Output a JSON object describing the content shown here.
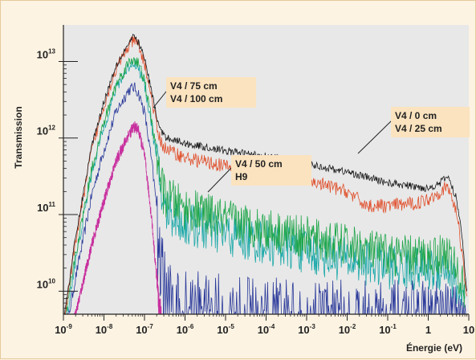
{
  "chart_data": {
    "type": "line",
    "ylabel": "Transmission",
    "xlabel": "Énergie (eV)",
    "x_scale": "log",
    "y_scale": "log",
    "xlim": [
      1e-09,
      10
    ],
    "ylim": [
      5000000000.0,
      30000000000000.0
    ],
    "x_ticks": [
      {
        "value": 1e-09,
        "base": "10",
        "exp": "-9"
      },
      {
        "value": 1e-08,
        "base": "10",
        "exp": "-8"
      },
      {
        "value": 1e-07,
        "base": "10",
        "exp": "-7"
      },
      {
        "value": 1e-06,
        "base": "10",
        "exp": "-6"
      },
      {
        "value": 1e-05,
        "base": "10",
        "exp": "-5"
      },
      {
        "value": 0.0001,
        "base": "10",
        "exp": "-4"
      },
      {
        "value": 0.001,
        "base": "10",
        "exp": "-3"
      },
      {
        "value": 0.01,
        "base": "10",
        "exp": "-2"
      },
      {
        "value": 0.1,
        "base": "10",
        "exp": "-1"
      },
      {
        "value": 1,
        "base": "1",
        "exp": ""
      },
      {
        "value": 10,
        "base": "10",
        "exp": ""
      }
    ],
    "y_ticks": [
      {
        "value": 10000000000.0,
        "base": "10",
        "exp": "10"
      },
      {
        "value": 100000000000.0,
        "base": "10",
        "exp": "11"
      },
      {
        "value": 1000000000000.0,
        "base": "10",
        "exp": "12"
      },
      {
        "value": 10000000000000.0,
        "base": "10",
        "exp": "13"
      }
    ],
    "grid": false,
    "series": [
      {
        "name": "V4 / 0 cm",
        "color": "#1a1a1a",
        "noise": 0.05,
        "points": [
          [
            1e-09,
            4000000000.0
          ],
          [
            2e-09,
            50000000000.0
          ],
          [
            5e-09,
            800000000000.0
          ],
          [
            1e-08,
            3000000000000.0
          ],
          [
            2e-08,
            9000000000000.0
          ],
          [
            4e-08,
            17000000000000.0
          ],
          [
            5.5e-08,
            21000000000000.0
          ],
          [
            7e-08,
            18000000000000.0
          ],
          [
            1e-07,
            11000000000000.0
          ],
          [
            1.5e-07,
            4000000000000.0
          ],
          [
            2.2e-07,
            1500000000000.0
          ],
          [
            3e-07,
            1050000000000.0
          ],
          [
            1e-06,
            850000000000.0
          ],
          [
            1e-05,
            680000000000.0
          ],
          [
            0.0001,
            580000000000.0
          ],
          [
            0.001,
            460000000000.0
          ],
          [
            0.01,
            360000000000.0
          ],
          [
            0.1,
            260000000000.0
          ],
          [
            0.5,
            230000000000.0
          ],
          [
            1,
            220000000000.0
          ],
          [
            2,
            260000000000.0
          ],
          [
            3,
            320000000000.0
          ],
          [
            5,
            160000000000.0
          ],
          [
            7,
            50000000000.0
          ],
          [
            9,
            9000000000.0
          ]
        ]
      },
      {
        "name": "V4 / 25 cm",
        "color": "#e0502c",
        "noise": 0.09,
        "points": [
          [
            1e-09,
            3500000000.0
          ],
          [
            2e-09,
            45000000000.0
          ],
          [
            5e-09,
            700000000000.0
          ],
          [
            1e-08,
            2700000000000.0
          ],
          [
            2e-08,
            8000000000000.0
          ],
          [
            4e-08,
            15500000000000.0
          ],
          [
            5.5e-08,
            19000000000000.0
          ],
          [
            7e-08,
            16000000000000.0
          ],
          [
            1e-07,
            9500000000000.0
          ],
          [
            1.5e-07,
            3300000000000.0
          ],
          [
            2.2e-07,
            1100000000000.0
          ],
          [
            3e-07,
            750000000000.0
          ],
          [
            1e-06,
            550000000000.0
          ],
          [
            1e-05,
            430000000000.0
          ],
          [
            0.0001,
            350000000000.0
          ],
          [
            0.001,
            280000000000.0
          ],
          [
            0.01,
            200000000000.0
          ],
          [
            0.03,
            130000000000.0
          ],
          [
            0.1,
            130000000000.0
          ],
          [
            0.5,
            140000000000.0
          ],
          [
            1,
            160000000000.0
          ],
          [
            2,
            200000000000.0
          ],
          [
            3,
            230000000000.0
          ],
          [
            5,
            110000000000.0
          ],
          [
            7,
            30000000000.0
          ],
          [
            9,
            8000000000.0
          ]
        ]
      },
      {
        "name": "V4 / 50 cm",
        "color": "#1fa64a",
        "noise": 0.28,
        "points": [
          [
            1e-09,
            3000000000.0
          ],
          [
            2e-09,
            30000000000.0
          ],
          [
            5e-09,
            400000000000.0
          ],
          [
            1e-08,
            1600000000000.0
          ],
          [
            2e-08,
            5000000000000.0
          ],
          [
            4e-08,
            9500000000000.0
          ],
          [
            5.5e-08,
            11000000000000.0
          ],
          [
            7e-08,
            9500000000000.0
          ],
          [
            1e-07,
            5500000000000.0
          ],
          [
            1.5e-07,
            1700000000000.0
          ],
          [
            2.2e-07,
            450000000000.0
          ],
          [
            3e-07,
            180000000000.0
          ],
          [
            1e-06,
            120000000000.0
          ],
          [
            1e-05,
            85000000000.0
          ],
          [
            0.0001,
            65000000000.0
          ],
          [
            0.001,
            50000000000.0
          ],
          [
            0.01,
            40000000000.0
          ],
          [
            0.1,
            30000000000.0
          ],
          [
            1,
            28000000000.0
          ],
          [
            3,
            32000000000.0
          ],
          [
            5,
            18000000000.0
          ],
          [
            8,
            10000000000.0
          ]
        ]
      },
      {
        "name": "V4 / 75 cm",
        "color": "#1aa8a8",
        "noise": 0.3,
        "points": [
          [
            1e-09,
            2500000000.0
          ],
          [
            2e-09,
            25000000000.0
          ],
          [
            5e-09,
            350000000000.0
          ],
          [
            1e-08,
            1400000000000.0
          ],
          [
            2e-08,
            4500000000000.0
          ],
          [
            4e-08,
            8500000000000.0
          ],
          [
            5.5e-08,
            10000000000000.0
          ],
          [
            7e-08,
            8500000000000.0
          ],
          [
            1e-07,
            5000000000000.0
          ],
          [
            1.5e-07,
            1500000000000.0
          ],
          [
            2.2e-07,
            350000000000.0
          ],
          [
            3e-07,
            120000000000.0
          ],
          [
            1e-06,
            75000000000.0
          ],
          [
            1e-05,
            55000000000.0
          ],
          [
            0.0001,
            43000000000.0
          ],
          [
            0.001,
            33000000000.0
          ],
          [
            0.01,
            26000000000.0
          ],
          [
            0.1,
            21000000000.0
          ],
          [
            1,
            19000000000.0
          ],
          [
            3,
            20000000000.0
          ],
          [
            5,
            12000000000.0
          ],
          [
            8,
            7000000000.0
          ]
        ]
      },
      {
        "name": "V4 / 100 cm",
        "color": "#2b3a9a",
        "noise": 0.45,
        "points": [
          [
            1e-09,
            2000000000.0
          ],
          [
            2e-09,
            15000000000.0
          ],
          [
            5e-09,
            180000000000.0
          ],
          [
            1e-08,
            700000000000.0
          ],
          [
            2e-08,
            2200000000000.0
          ],
          [
            4e-08,
            4200000000000.0
          ],
          [
            5.5e-08,
            4600000000000.0
          ],
          [
            7e-08,
            3900000000000.0
          ],
          [
            1e-07,
            2200000000000.0
          ],
          [
            1.5e-07,
            500000000000.0
          ],
          [
            2.2e-07,
            80000000000.0
          ],
          [
            3e-07,
            16000000000.0
          ],
          [
            5e-07,
            8000000000.0
          ],
          [
            1e-06,
            7000000000.0
          ],
          [
            1e-05,
            6000000000.0
          ],
          [
            0.0001,
            5500000000.0
          ],
          [
            0.001,
            5500000000.0
          ],
          [
            0.01,
            5000000000.0
          ],
          [
            0.1,
            5000000000.0
          ],
          [
            1,
            5000000000.0
          ],
          [
            5,
            4500000000.0
          ],
          [
            9,
            4000000000.0
          ]
        ]
      },
      {
        "name": "H9",
        "color": "#c8309e",
        "noise": 0.2,
        "points": [
          [
            1e-09,
            1500000000.0
          ],
          [
            2e-09,
            5000000000.0
          ],
          [
            5e-09,
            40000000000.0
          ],
          [
            1e-08,
            150000000000.0
          ],
          [
            2e-08,
            500000000000.0
          ],
          [
            4e-08,
            1100000000000.0
          ],
          [
            5.5e-08,
            1400000000000.0
          ],
          [
            7e-08,
            1300000000000.0
          ],
          [
            1e-07,
            600000000000.0
          ],
          [
            1.5e-07,
            90000000000.0
          ],
          [
            2.2e-07,
            8000000000.0
          ],
          [
            2.8e-07,
            3000000000.0
          ]
        ]
      }
    ],
    "legend": [
      {
        "lines": [
          "V4 / 75 cm",
          "V4 / 100 cm"
        ],
        "placement": "upper-left-center"
      },
      {
        "lines": [
          "V4 / 0 cm",
          "V4 / 25 cm"
        ],
        "placement": "upper-right"
      },
      {
        "lines": [
          "V4 / 50 cm",
          "H9"
        ],
        "placement": "center"
      }
    ]
  }
}
